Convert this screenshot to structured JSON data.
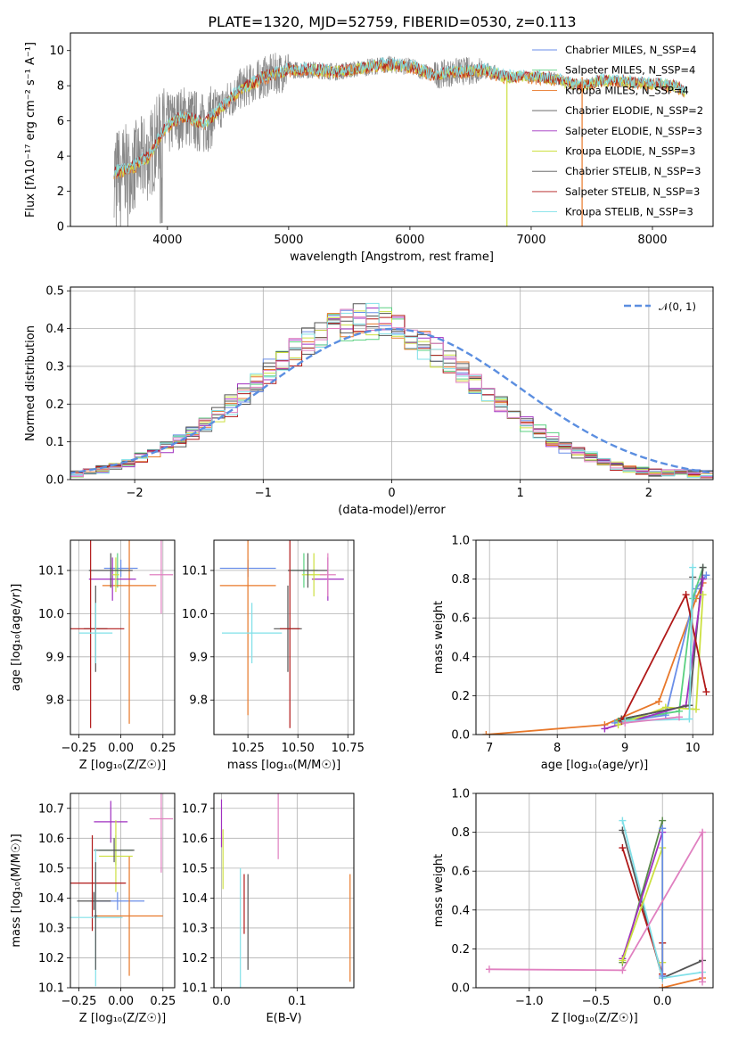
{
  "title": "PLATE=1320, MJD=52759, FIBERID=0530, z=0.113",
  "colors": {
    "chabrier_miles": "#6a8ee8",
    "salpeter_miles": "#5ad080",
    "kroupa_miles": "#e8782a",
    "chabrier_elodie": "#555555",
    "salpeter_elodie": "#a030c0",
    "kroupa_elodie": "#cce040",
    "chabrier_stelib": "#555555",
    "salpeter_stelib": "#b01818",
    "kroupa_stelib": "#80e0e8",
    "data": "#888888",
    "extra_green": "#5a8a4a",
    "extra_pink": "#e080c0",
    "normal": "#5b8ee0"
  },
  "chart_data": [
    {
      "id": "spectrum",
      "type": "line",
      "xlabel": "wavelength [Angstrom, rest frame]",
      "ylabel": "Flux [fλ10⁻¹⁷ erg cm⁻² s⁻¹ A⁻¹]",
      "xlim": [
        3200,
        8500
      ],
      "ylim": [
        0,
        11
      ],
      "xticks": [
        4000,
        5000,
        6000,
        7000,
        8000
      ],
      "yticks": [
        0,
        2,
        4,
        6,
        8,
        10
      ],
      "continuum_anchors": {
        "x": [
          3560,
          3700,
          3850,
          3950,
          4050,
          4150,
          4300,
          4450,
          4600,
          4800,
          5000,
          5200,
          5400,
          5600,
          5800,
          6000,
          6200,
          6400,
          6600,
          6800,
          7000,
          7200,
          7400,
          7600,
          7800,
          8000,
          8200,
          8270
        ],
        "y": [
          3.1,
          3.3,
          4.0,
          5.3,
          6.0,
          6.3,
          5.8,
          6.8,
          7.8,
          8.5,
          8.9,
          8.9,
          8.8,
          9.0,
          9.2,
          9.1,
          8.6,
          8.8,
          8.9,
          8.5,
          8.5,
          8.4,
          8.0,
          8.3,
          8.2,
          8.1,
          8.0,
          7.6
        ]
      },
      "legend": [
        "Chabrier MILES, N_SSP=4",
        "Salpeter MILES, N_SSP=4",
        "Kroupa MILES, N_SSP=4",
        "Chabrier ELODIE, N_SSP=2",
        "Salpeter ELODIE, N_SSP=3",
        "Kroupa ELODIE, N_SSP=3",
        "Chabrier STELIB, N_SSP=3",
        "Salpeter STELIB, N_SSP=3",
        "Kroupa STELIB, N_SSP=3"
      ],
      "legend_placement": "upper right"
    },
    {
      "id": "residuals",
      "type": "histogram",
      "xlabel": "(data-model)/error",
      "ylabel": "Normed distribution",
      "xlim": [
        -2.5,
        2.5
      ],
      "ylim": [
        0,
        0.51
      ],
      "xticks": [
        -2,
        -1,
        0,
        1,
        2
      ],
      "yticks": [
        0.0,
        0.1,
        0.2,
        0.3,
        0.4,
        0.5
      ],
      "bin_width": 0.1,
      "bin_start": -2.5,
      "envelope": [
        0.018,
        0.022,
        0.028,
        0.036,
        0.046,
        0.058,
        0.072,
        0.088,
        0.106,
        0.126,
        0.148,
        0.172,
        0.198,
        0.225,
        0.253,
        0.282,
        0.31,
        0.337,
        0.362,
        0.383,
        0.4,
        0.412,
        0.418,
        0.418,
        0.412,
        0.4,
        0.383,
        0.362,
        0.337,
        0.31,
        0.282,
        0.253,
        0.225,
        0.198,
        0.172,
        0.148,
        0.126,
        0.106,
        0.088,
        0.072,
        0.058,
        0.046,
        0.036,
        0.028,
        0.022,
        0.018,
        0.016,
        0.016,
        0.016,
        0.016
      ],
      "legend": [
        "𝒩(0, 1)"
      ],
      "legend_placement": "upper right"
    },
    {
      "id": "z-age",
      "type": "scatter",
      "xlabel": "Z [log₁₀(Z/Z☉)]",
      "ylabel": "age  [log₁₀(age/yr)]",
      "xlim": [
        -0.3,
        0.32
      ],
      "ylim": [
        9.72,
        10.17
      ],
      "xticks": [
        -0.25,
        0.0,
        0.25
      ],
      "xticklabels": [
        "−0.25",
        "0.00",
        "0.25"
      ],
      "yticks": [
        9.8,
        9.9,
        10.0,
        10.1
      ],
      "points": [
        {
          "c": "chabrier_miles",
          "x": 0.0,
          "xerr": 0.1,
          "y": 10.105,
          "yerr": 0.02
        },
        {
          "c": "salpeter_miles",
          "x": -0.02,
          "xerr": 0.03,
          "y": 10.1,
          "yerr": 0.04
        },
        {
          "c": "kroupa_miles",
          "x": 0.05,
          "xerr": 0.16,
          "y": 10.065,
          "yerr": 0.32
        },
        {
          "c": "chabrier_elodie",
          "x": -0.15,
          "xerr": 0.07,
          "y": 9.965,
          "yerr": 0.1
        },
        {
          "c": "salpeter_elodie",
          "x": -0.05,
          "xerr": 0.14,
          "y": 10.08,
          "yerr": 0.05
        },
        {
          "c": "kroupa_elodie",
          "x": -0.03,
          "xerr": 0.02,
          "y": 10.09,
          "yerr": 0.04
        },
        {
          "c": "chabrier_stelib",
          "x": -0.06,
          "xerr": 0.13,
          "y": 10.1,
          "yerr": 0.04
        },
        {
          "c": "salpeter_stelib",
          "x": -0.18,
          "xerr": 0.2,
          "y": 9.965,
          "yerr": 0.23
        },
        {
          "c": "kroupa_stelib",
          "x": -0.15,
          "xerr": 0.1,
          "y": 9.955,
          "yerr": 0.07
        },
        {
          "c": "extra_pink",
          "x": 0.24,
          "xerr": 0.07,
          "y": 10.09,
          "yerr": 0.09
        }
      ]
    },
    {
      "id": "mass-age",
      "type": "scatter",
      "xlabel": "mass [log₁₀(M/M☉)]",
      "ylabel": "",
      "xlim": [
        10.08,
        10.78
      ],
      "ylim": [
        9.72,
        10.17
      ],
      "xticks": [
        10.25,
        10.5,
        10.75
      ],
      "xticklabels": [
        "10.25",
        "10.50",
        "10.75"
      ],
      "yticks": [
        9.8,
        9.9,
        10.0,
        10.1
      ],
      "points": [
        {
          "c": "chabrier_miles",
          "x": 10.25,
          "xerr": 0.14,
          "y": 10.105,
          "yerr": 0.02
        },
        {
          "c": "salpeter_miles",
          "x": 10.53,
          "xerr": 0.07,
          "y": 10.1,
          "yerr": 0.04
        },
        {
          "c": "kroupa_miles",
          "x": 10.25,
          "xerr": 0.14,
          "y": 10.065,
          "yerr": 0.3
        },
        {
          "c": "chabrier_elodie",
          "x": 10.45,
          "xerr": 0.07,
          "y": 9.965,
          "yerr": 0.1
        },
        {
          "c": "salpeter_elodie",
          "x": 10.65,
          "xerr": 0.08,
          "y": 10.08,
          "yerr": 0.05
        },
        {
          "c": "kroupa_elodie",
          "x": 10.58,
          "xerr": 0.06,
          "y": 10.09,
          "yerr": 0.05
        },
        {
          "c": "chabrier_stelib",
          "x": 10.55,
          "xerr": 0.1,
          "y": 10.1,
          "yerr": 0.04
        },
        {
          "c": "salpeter_stelib",
          "x": 10.46,
          "xerr": 0.05,
          "y": 9.965,
          "yerr": 0.23
        },
        {
          "c": "kroupa_stelib",
          "x": 10.27,
          "xerr": 0.15,
          "y": 9.955,
          "yerr": 0.07
        },
        {
          "c": "extra_pink",
          "x": 10.65,
          "xerr": 0.04,
          "y": 10.09,
          "yerr": 0.05
        }
      ]
    },
    {
      "id": "age-weight",
      "type": "line",
      "xlabel": "age  [log₁₀(age/yr)]",
      "ylabel": "mass weight",
      "xlim": [
        6.8,
        10.3
      ],
      "ylim": [
        0,
        1.0
      ],
      "xticks": [
        7,
        8,
        9,
        10
      ],
      "yticks": [
        0.0,
        0.2,
        0.4,
        0.6,
        0.8,
        1.0
      ],
      "series": [
        {
          "c": "kroupa_miles",
          "x": [
            6.95,
            8.7,
            9.5,
            10.05,
            10.15
          ],
          "y": [
            0.0,
            0.05,
            0.17,
            0.7,
            0.78
          ]
        },
        {
          "c": "chabrier_miles",
          "x": [
            8.85,
            9.6,
            10.05,
            10.2
          ],
          "y": [
            0.06,
            0.1,
            0.75,
            0.82
          ]
        },
        {
          "c": "salpeter_miles",
          "x": [
            8.9,
            9.8,
            10.0,
            10.15
          ],
          "y": [
            0.07,
            0.12,
            0.7,
            0.86
          ]
        },
        {
          "c": "chabrier_elodie",
          "x": [
            8.95,
            9.95,
            10.15
          ],
          "y": [
            0.08,
            0.15,
            0.86
          ]
        },
        {
          "c": "salpeter_elodie",
          "x": [
            8.7,
            9.9,
            10.15
          ],
          "y": [
            0.03,
            0.15,
            0.8
          ]
        },
        {
          "c": "kroupa_elodie",
          "x": [
            8.9,
            9.6,
            10.05,
            10.15
          ],
          "y": [
            0.05,
            0.14,
            0.13,
            0.72
          ]
        },
        {
          "c": "chabrier_stelib",
          "x": [
            8.95,
            9.95,
            10.0
          ],
          "y": [
            0.08,
            0.15,
            0.81
          ]
        },
        {
          "c": "salpeter_stelib",
          "x": [
            8.95,
            9.9,
            10.2
          ],
          "y": [
            0.07,
            0.72,
            0.22
          ]
        },
        {
          "c": "kroupa_stelib",
          "x": [
            9.0,
            9.95,
            10.0
          ],
          "y": [
            0.07,
            0.08,
            0.86
          ]
        },
        {
          "c": "extra_pink",
          "x": [
            9.0,
            9.8
          ],
          "y": [
            0.06,
            0.09
          ]
        }
      ]
    },
    {
      "id": "z-mass",
      "type": "scatter",
      "xlabel": "Z [log₁₀(Z/Z☉)]",
      "ylabel": "mass [log₁₀(M/M☉)]",
      "xlim": [
        -0.3,
        0.32
      ],
      "ylim": [
        10.1,
        10.75
      ],
      "xticks": [
        -0.25,
        0.0,
        0.25
      ],
      "xticklabels": [
        "−0.25",
        "0.00",
        "0.25"
      ],
      "yticks": [
        10.1,
        10.2,
        10.3,
        10.4,
        10.5,
        10.6,
        10.7
      ],
      "points": [
        {
          "c": "chabrier_miles",
          "x": -0.02,
          "xerr": 0.16,
          "y": 10.39,
          "yerr": 0.03
        },
        {
          "c": "salpeter_miles",
          "x": -0.03,
          "xerr": 0.1,
          "y": 10.56,
          "yerr": 0.05
        },
        {
          "c": "kroupa_miles",
          "x": 0.05,
          "xerr": 0.2,
          "y": 10.34,
          "yerr": 0.2
        },
        {
          "c": "chabrier_elodie",
          "x": -0.16,
          "xerr": 0.1,
          "y": 10.39,
          "yerr": 0.03
        },
        {
          "c": "salpeter_elodie",
          "x": -0.06,
          "xerr": 0.1,
          "y": 10.655,
          "yerr": 0.07
        },
        {
          "c": "kroupa_elodie",
          "x": -0.03,
          "xerr": 0.1,
          "y": 10.54,
          "yerr": 0.12
        },
        {
          "c": "chabrier_stelib",
          "x": -0.04,
          "xerr": 0.12,
          "y": 10.56,
          "yerr": 0.04
        },
        {
          "c": "salpeter_stelib",
          "x": -0.17,
          "xerr": 0.2,
          "y": 10.45,
          "yerr": 0.16
        },
        {
          "c": "kroupa_stelib",
          "x": -0.15,
          "xerr": 0.16,
          "y": 10.335,
          "yerr": 0.23
        },
        {
          "c": "chabrier_stelib",
          "x": -0.15,
          "xerr": 0.01,
          "y": 10.34,
          "yerr": 0.18
        },
        {
          "c": "extra_pink",
          "x": 0.24,
          "xerr": 0.07,
          "y": 10.665,
          "yerr": 0.18
        }
      ]
    },
    {
      "id": "ebv-mass",
      "type": "scatter",
      "xlabel": "E(B-V)",
      "ylabel": "",
      "xlim": [
        -0.01,
        0.175
      ],
      "ylim": [
        10.1,
        10.75
      ],
      "xticks": [
        0.0,
        0.1
      ],
      "xticklabels": [
        "0.0",
        "0.1"
      ],
      "yticks": [
        10.1,
        10.2,
        10.3,
        10.4,
        10.5,
        10.6,
        10.7
      ],
      "points": [
        {
          "c": "salpeter_elodie",
          "x": 0.0,
          "xerr": 0.0,
          "y": 10.65,
          "yerr": 0.08
        },
        {
          "c": "kroupa_elodie",
          "x": 0.002,
          "xerr": 0.0,
          "y": 10.53,
          "yerr": 0.1
        },
        {
          "c": "kroupa_stelib",
          "x": 0.025,
          "xerr": 0.0,
          "y": 10.3,
          "yerr": 0.2
        },
        {
          "c": "salpeter_stelib",
          "x": 0.03,
          "xerr": 0.0,
          "y": 10.38,
          "yerr": 0.1
        },
        {
          "c": "chabrier_stelib",
          "x": 0.035,
          "xerr": 0.0,
          "y": 10.32,
          "yerr": 0.16
        },
        {
          "c": "extra_pink",
          "x": 0.075,
          "xerr": 0.0,
          "y": 10.65,
          "yerr": 0.12
        },
        {
          "c": "kroupa_miles",
          "x": 0.17,
          "xerr": 0.0,
          "y": 10.3,
          "yerr": 0.18
        }
      ]
    },
    {
      "id": "z-weight",
      "type": "line",
      "xlabel": "Z [log₁₀(Z/Z☉)]",
      "ylabel": "mass weight",
      "xlim": [
        -1.4,
        0.38
      ],
      "ylim": [
        0,
        1.0
      ],
      "xticks": [
        -1.0,
        -0.5,
        0.0
      ],
      "xticklabels": [
        "−1.0",
        "−0.5",
        "0.0"
      ],
      "yticks": [
        0.0,
        0.2,
        0.4,
        0.6,
        0.8,
        1.0
      ],
      "series": [
        {
          "c": "chabrier_stelib",
          "x": [
            -0.3,
            0.0,
            0.3
          ],
          "y": [
            0.81,
            0.05,
            0.14
          ]
        },
        {
          "c": "salpeter_stelib",
          "x": [
            -0.3,
            0.0,
            0.0
          ],
          "y": [
            0.72,
            0.07,
            0.23
          ]
        },
        {
          "c": "kroupa_stelib",
          "x": [
            -0.3,
            0.0,
            0.3
          ],
          "y": [
            0.86,
            0.05,
            0.08
          ]
        },
        {
          "c": "extra_green",
          "x": [
            -0.3,
            0.0
          ],
          "y": [
            0.13,
            0.86
          ]
        },
        {
          "c": "salpeter_elodie",
          "x": [
            -0.3,
            0.0
          ],
          "y": [
            0.15,
            0.8
          ]
        },
        {
          "c": "kroupa_elodie",
          "x": [
            -0.3,
            0.0,
            0.0
          ],
          "y": [
            0.14,
            0.72,
            0.13
          ]
        },
        {
          "c": "chabrier_miles",
          "x": [
            0.0,
            0.0
          ],
          "y": [
            0.06,
            0.82
          ]
        },
        {
          "c": "kroupa_miles",
          "x": [
            0.0,
            0.3
          ],
          "y": [
            0.0,
            0.05
          ]
        },
        {
          "c": "extra_pink",
          "x": [
            -1.3,
            -0.3,
            0.3,
            0.3
          ],
          "y": [
            0.095,
            0.09,
            0.8,
            0.03
          ]
        }
      ]
    }
  ]
}
